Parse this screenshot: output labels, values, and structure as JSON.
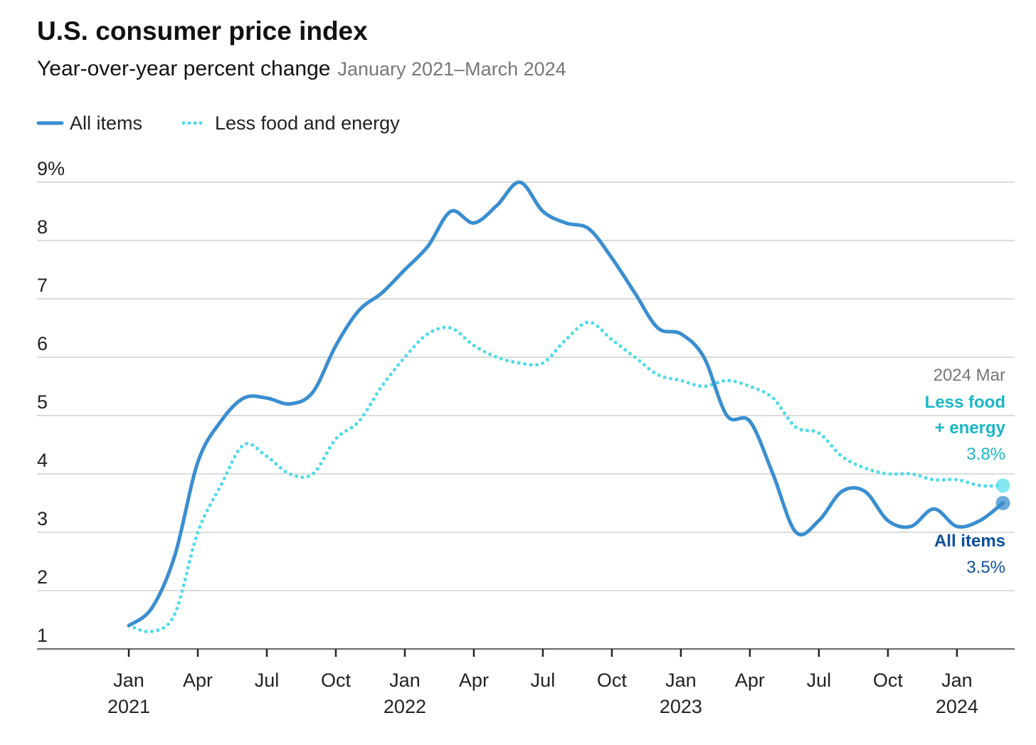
{
  "colors": {
    "all_items": "#3a8ed0",
    "core": "#4fdbe9",
    "core_label": "#19b6c9",
    "all_items_label": "#0d4f9b"
  },
  "chart_data": {
    "type": "line",
    "title": "U.S. consumer price index",
    "subtitle": "Year-over-year percent change",
    "date_range": "January 2021–March 2024",
    "xlabel": "",
    "ylabel": "",
    "ylim": [
      1,
      9
    ],
    "yticks": [
      "9%",
      "8",
      "7",
      "6",
      "5",
      "4",
      "3",
      "2",
      "1"
    ],
    "ytick_values": [
      9,
      8,
      7,
      6,
      5,
      4,
      3,
      2,
      1
    ],
    "grid": true,
    "legend_position": "top-left",
    "x_start": "2021-01",
    "xticks": [
      {
        "month_index": 0,
        "label": "Jan",
        "year": "2021"
      },
      {
        "month_index": 3,
        "label": "Apr",
        "year": ""
      },
      {
        "month_index": 6,
        "label": "Jul",
        "year": ""
      },
      {
        "month_index": 9,
        "label": "Oct",
        "year": ""
      },
      {
        "month_index": 12,
        "label": "Jan",
        "year": "2022"
      },
      {
        "month_index": 15,
        "label": "Apr",
        "year": ""
      },
      {
        "month_index": 18,
        "label": "Jul",
        "year": ""
      },
      {
        "month_index": 21,
        "label": "Oct",
        "year": ""
      },
      {
        "month_index": 24,
        "label": "Jan",
        "year": "2023"
      },
      {
        "month_index": 27,
        "label": "Apr",
        "year": ""
      },
      {
        "month_index": 30,
        "label": "Jul",
        "year": ""
      },
      {
        "month_index": 33,
        "label": "Oct",
        "year": ""
      },
      {
        "month_index": 36,
        "label": "Jan",
        "year": "2024"
      }
    ],
    "series": [
      {
        "name": "All items",
        "style": "solid",
        "values": [
          1.4,
          1.7,
          2.6,
          4.2,
          4.9,
          5.3,
          5.3,
          5.2,
          5.4,
          6.2,
          6.8,
          7.1,
          7.5,
          7.9,
          8.5,
          8.3,
          8.6,
          9.0,
          8.5,
          8.3,
          8.2,
          7.7,
          7.1,
          6.5,
          6.4,
          6.0,
          5.0,
          4.9,
          4.0,
          3.0,
          3.2,
          3.7,
          3.7,
          3.2,
          3.1,
          3.4,
          3.1,
          3.2,
          3.5
        ]
      },
      {
        "name": "Less food and energy",
        "style": "dotted",
        "values": [
          1.4,
          1.3,
          1.6,
          3.0,
          3.8,
          4.5,
          4.3,
          4.0,
          4.0,
          4.6,
          4.9,
          5.5,
          6.0,
          6.4,
          6.5,
          6.2,
          6.0,
          5.9,
          5.9,
          6.3,
          6.6,
          6.3,
          6.0,
          5.7,
          5.6,
          5.5,
          5.6,
          5.5,
          5.3,
          4.8,
          4.7,
          4.3,
          4.1,
          4.0,
          4.0,
          3.9,
          3.9,
          3.8,
          3.8
        ]
      }
    ],
    "annotations": {
      "date": "2024 Mar",
      "core_label_1": "Less food",
      "core_label_2": "+ energy",
      "core_value": "3.8%",
      "all_label": "All items",
      "all_value": "3.5%"
    }
  }
}
